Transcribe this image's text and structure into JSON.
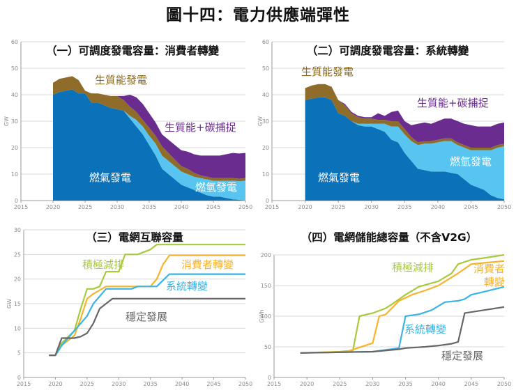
{
  "figure_title": "圖十四：電力供應端彈性",
  "colors": {
    "gas": "#0b72b9",
    "h2gas": "#58c4f0",
    "bio": "#8f6c2a",
    "beccs": "#6a2d8f",
    "consumer": "#f7b32b",
    "system": "#3ab4e6",
    "netzero": "#a8c93c",
    "steady": "#666666",
    "grid": "#d8d8d8",
    "axis": "#9a9a9a",
    "label_light": "#ffffff",
    "label_bio": "#8a6a1e",
    "label_beccs": "#6a2d8f"
  },
  "chart_data": [
    {
      "id": "p1",
      "type": "area",
      "title": "（一）可調度發電容量：消費者轉變",
      "ylabel": "GW",
      "xlim": [
        2015,
        2050
      ],
      "ylim": [
        0,
        60
      ],
      "xticks": [
        2015,
        2020,
        2025,
        2030,
        2035,
        2040,
        2045,
        2050
      ],
      "yticks": [
        0,
        10,
        20,
        30,
        40,
        50,
        60
      ],
      "x": [
        2020,
        2021,
        2022,
        2023,
        2024,
        2025,
        2026,
        2027,
        2028,
        2029,
        2030,
        2031,
        2032,
        2033,
        2034,
        2035,
        2036,
        2037,
        2038,
        2039,
        2040,
        2041,
        2042,
        2043,
        2044,
        2045,
        2046,
        2047,
        2048,
        2049,
        2050
      ],
      "series": [
        {
          "name": "燃氣發電",
          "color_key": "gas",
          "label_color_key": "label_light",
          "values": [
            40,
            41,
            41.5,
            42,
            40.5,
            40.5,
            37,
            37,
            36,
            35,
            34.5,
            34,
            31,
            28,
            25,
            21,
            17,
            12,
            10,
            8,
            6,
            5,
            4,
            3,
            2,
            1.5,
            1.5,
            1,
            0.5,
            0.3,
            0
          ]
        },
        {
          "name": "燃氫發電",
          "color_key": "h2gas",
          "label_color_key": "label_light",
          "values": [
            0,
            0,
            0,
            0,
            0,
            0,
            0,
            0,
            0,
            0,
            0,
            0,
            1,
            2.5,
            3,
            3.5,
            4.5,
            5,
            5,
            5,
            5,
            5,
            5,
            5.5,
            6,
            6,
            6,
            6.5,
            7,
            7,
            7.5
          ]
        },
        {
          "name": "生質能發電",
          "color_key": "bio",
          "label_color_key": "label_bio",
          "values": [
            4.5,
            5,
            5,
            5,
            5,
            1,
            3.5,
            3.5,
            4,
            4.5,
            5,
            4,
            3.5,
            3,
            2.5,
            3,
            3,
            3.5,
            3,
            2.5,
            2,
            2,
            1.5,
            1,
            1,
            1,
            1,
            1,
            1,
            1,
            1
          ]
        },
        {
          "name": "生質能+碳捕捉",
          "color_key": "beccs",
          "label_color_key": "label_beccs",
          "values": [
            0,
            0,
            0,
            0,
            0,
            0,
            0,
            0,
            0,
            0,
            0,
            1.5,
            4.5,
            5.5,
            6,
            5.5,
            5,
            4.5,
            5,
            5.5,
            6,
            6.5,
            7,
            7.5,
            8,
            8.5,
            8.5,
            9,
            9.5,
            9.5,
            9.5
          ]
        }
      ]
    },
    {
      "id": "p2",
      "type": "area",
      "title": "（二）可調度發電容量：系統轉變",
      "ylabel": "GW",
      "xlim": [
        2015,
        2050
      ],
      "ylim": [
        0,
        60
      ],
      "xticks": [
        2015,
        2020,
        2025,
        2030,
        2035,
        2040,
        2045,
        2050
      ],
      "yticks": [
        0,
        10,
        20,
        30,
        40,
        50,
        60
      ],
      "x": [
        2020,
        2021,
        2022,
        2023,
        2024,
        2025,
        2026,
        2027,
        2028,
        2029,
        2030,
        2031,
        2032,
        2033,
        2034,
        2035,
        2036,
        2037,
        2038,
        2039,
        2040,
        2041,
        2042,
        2043,
        2044,
        2045,
        2046,
        2047,
        2048,
        2049,
        2050
      ],
      "series": [
        {
          "name": "燃氣發電",
          "color_key": "gas",
          "label_color_key": "label_light",
          "values": [
            38,
            38.5,
            39,
            39,
            38,
            33,
            32,
            30,
            28.5,
            28,
            28,
            27,
            26,
            23,
            22,
            18,
            15,
            12,
            11.5,
            11,
            11,
            11,
            10.5,
            10,
            8,
            6,
            5,
            4,
            2,
            1,
            0.5
          ]
        },
        {
          "name": "燃氫發電",
          "color_key": "h2gas",
          "label_color_key": "label_light",
          "values": [
            0,
            0,
            0,
            0,
            0,
            0,
            0,
            0,
            0.5,
            1,
            1,
            2,
            3,
            5,
            6,
            7,
            7.5,
            9,
            10,
            10.5,
            11,
            11.5,
            12,
            11,
            12,
            13,
            14,
            15,
            17,
            19,
            20
          ]
        },
        {
          "name": "生質能發電",
          "color_key": "bio",
          "label_color_key": "label_bio",
          "values": [
            4.5,
            5,
            5,
            5,
            5,
            5,
            4,
            3,
            2.5,
            2,
            2,
            1.5,
            1.5,
            2,
            2,
            2,
            1.5,
            1,
            1,
            1,
            1,
            1,
            1,
            1,
            1,
            1,
            1,
            1,
            1,
            1,
            1
          ]
        },
        {
          "name": "生質能+碳捕捉",
          "color_key": "beccs",
          "label_color_key": "label_beccs",
          "values": [
            0,
            0,
            0,
            0,
            0,
            0,
            0.5,
            0.5,
            0.5,
            0.5,
            0.5,
            2.5,
            1.5,
            3.5,
            4,
            3,
            4.5,
            7,
            7,
            6.5,
            7,
            7.5,
            7.5,
            8,
            8,
            8.5,
            8,
            8,
            8,
            8,
            8
          ]
        }
      ]
    },
    {
      "id": "p3",
      "type": "line",
      "title": "（三）電網互聯容量",
      "ylabel": "GW",
      "xlim": [
        2015,
        2050
      ],
      "ylim": [
        0,
        30
      ],
      "xticks": [
        2015,
        2020,
        2025,
        2030,
        2035,
        2040,
        2045,
        2050
      ],
      "yticks": [
        0,
        5,
        10,
        15,
        20,
        25,
        30
      ],
      "series": [
        {
          "name": "積極減排",
          "color_key": "netzero",
          "points": [
            [
              2019,
              4.5
            ],
            [
              2020,
              4.5
            ],
            [
              2021,
              7
            ],
            [
              2023,
              9.5
            ],
            [
              2024,
              14
            ],
            [
              2025,
              18
            ],
            [
              2026,
              18
            ],
            [
              2027,
              18.5
            ],
            [
              2028,
              21.5
            ],
            [
              2030,
              21.5
            ],
            [
              2031,
              25
            ],
            [
              2033,
              25
            ],
            [
              2035,
              26
            ],
            [
              2036,
              27
            ],
            [
              2050,
              27
            ]
          ]
        },
        {
          "name": "消費者轉變",
          "color_key": "consumer",
          "points": [
            [
              2019,
              4.5
            ],
            [
              2020,
              4.5
            ],
            [
              2021,
              6.5
            ],
            [
              2023,
              8.5
            ],
            [
              2024,
              12
            ],
            [
              2025,
              16
            ],
            [
              2026,
              17
            ],
            [
              2028,
              18.5
            ],
            [
              2035,
              18.5
            ],
            [
              2036,
              20
            ],
            [
              2037,
              23
            ],
            [
              2038,
              24.8
            ],
            [
              2050,
              24.8
            ]
          ]
        },
        {
          "name": "系統轉變",
          "color_key": "system",
          "points": [
            [
              2019,
              4.5
            ],
            [
              2020,
              4.5
            ],
            [
              2021,
              6.5
            ],
            [
              2022,
              8
            ],
            [
              2024,
              11
            ],
            [
              2025,
              12.5
            ],
            [
              2026,
              15
            ],
            [
              2028,
              18
            ],
            [
              2032,
              18
            ],
            [
              2033,
              18.5
            ],
            [
              2036,
              18.5
            ],
            [
              2038,
              21
            ],
            [
              2050,
              21
            ]
          ]
        },
        {
          "name": "穩定發展",
          "color_key": "steady",
          "points": [
            [
              2019,
              4.5
            ],
            [
              2020,
              4.5
            ],
            [
              2021,
              8
            ],
            [
              2023,
              8
            ],
            [
              2024,
              8.3
            ],
            [
              2025,
              9
            ],
            [
              2026,
              11
            ],
            [
              2027,
              14
            ],
            [
              2029,
              16
            ],
            [
              2050,
              16
            ]
          ]
        }
      ]
    },
    {
      "id": "p4",
      "type": "line",
      "title": "（四）電網儲能總容量（不含V2G）",
      "ylabel": "GWh",
      "xlim": [
        2015,
        2050
      ],
      "ylim": [
        0,
        200
      ],
      "xticks": [
        2015,
        2020,
        2025,
        2030,
        2035,
        2040,
        2045,
        2050
      ],
      "yticks": [
        0,
        50,
        100,
        150,
        200
      ],
      "series": [
        {
          "name": "積極減排",
          "color_key": "netzero",
          "points": [
            [
              2019,
              40
            ],
            [
              2025,
              42
            ],
            [
              2027,
              44
            ],
            [
              2028,
              100
            ],
            [
              2030,
              105
            ],
            [
              2032,
              113
            ],
            [
              2033,
              120
            ],
            [
              2035,
              135
            ],
            [
              2037,
              148
            ],
            [
              2040,
              157
            ],
            [
              2042,
              170
            ],
            [
              2043,
              185
            ],
            [
              2045,
              192
            ],
            [
              2047,
              195
            ],
            [
              2050,
              200
            ]
          ]
        },
        {
          "name": "消費者轉變",
          "color_key": "consumer",
          "points": [
            [
              2019,
              40
            ],
            [
              2026,
              42
            ],
            [
              2030,
              56
            ],
            [
              2031,
              100
            ],
            [
              2032,
              103
            ],
            [
              2034,
              125
            ],
            [
              2036,
              135
            ],
            [
              2038,
              142
            ],
            [
              2040,
              150
            ],
            [
              2043,
              170
            ],
            [
              2045,
              185
            ],
            [
              2047,
              187
            ],
            [
              2050,
              190
            ]
          ]
        },
        {
          "name": "系統轉變",
          "color_key": "system",
          "points": [
            [
              2019,
              40
            ],
            [
              2030,
              42
            ],
            [
              2034,
              48
            ],
            [
              2035,
              100
            ],
            [
              2037,
              103
            ],
            [
              2039,
              110
            ],
            [
              2041,
              123
            ],
            [
              2043,
              125
            ],
            [
              2044,
              128
            ],
            [
              2045,
              135
            ],
            [
              2047,
              140
            ],
            [
              2050,
              148
            ]
          ]
        },
        {
          "name": "穩定發展",
          "color_key": "steady",
          "points": [
            [
              2019,
              40
            ],
            [
              2030,
              42
            ],
            [
              2034,
              46
            ],
            [
              2035,
              48
            ],
            [
              2038,
              50
            ],
            [
              2040,
              52
            ],
            [
              2042,
              55
            ],
            [
              2043,
              58
            ],
            [
              2044,
              105
            ],
            [
              2047,
              110
            ],
            [
              2050,
              115
            ]
          ]
        }
      ]
    }
  ]
}
